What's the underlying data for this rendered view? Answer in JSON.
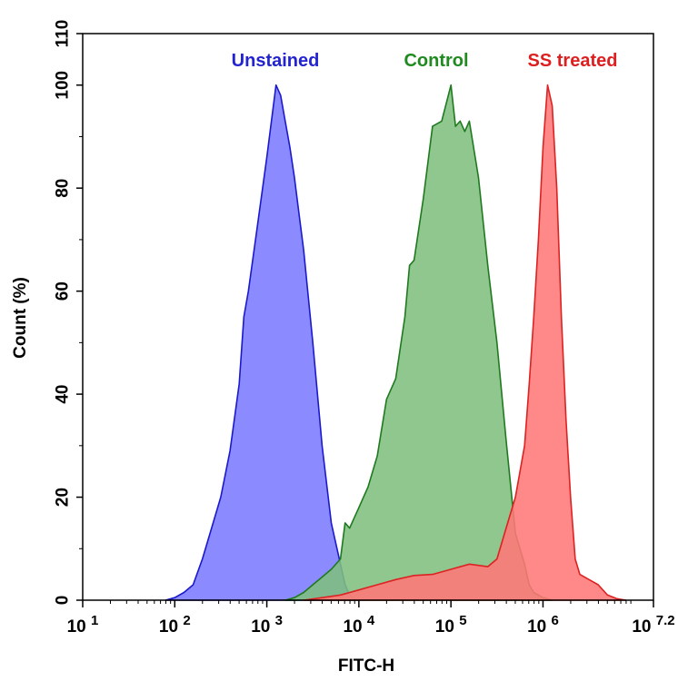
{
  "chart_data": {
    "type": "area",
    "title": "",
    "xlabel": "FITC-H",
    "ylabel": "Count  (%)",
    "x_scale": "log10",
    "xlim": [
      1,
      7.2
    ],
    "ylim": [
      0,
      110
    ],
    "x_ticks": [
      {
        "value": 1,
        "base": "10",
        "exp": "1"
      },
      {
        "value": 2,
        "base": "10",
        "exp": "2"
      },
      {
        "value": 3,
        "base": "10",
        "exp": "3"
      },
      {
        "value": 4,
        "base": "10",
        "exp": "4"
      },
      {
        "value": 5,
        "base": "10",
        "exp": "5"
      },
      {
        "value": 6,
        "base": "10",
        "exp": "6"
      },
      {
        "value": 7.2,
        "base": "10",
        "exp": "7.2"
      }
    ],
    "y_ticks": [
      {
        "value": 0,
        "label": "0"
      },
      {
        "value": 20,
        "label": "20"
      },
      {
        "value": 40,
        "label": "40"
      },
      {
        "value": 60,
        "label": "60"
      },
      {
        "value": 80,
        "label": "80"
      },
      {
        "value": 100,
        "label": "100"
      },
      {
        "value": 110,
        "label": "110"
      }
    ],
    "grid": false,
    "series": [
      {
        "name": "Unstained",
        "color": "#1a1acc",
        "fill": "#7b7bff",
        "points": [
          [
            1.9,
            0
          ],
          [
            2.0,
            0.5
          ],
          [
            2.1,
            1.5
          ],
          [
            2.2,
            3
          ],
          [
            2.3,
            8
          ],
          [
            2.4,
            14
          ],
          [
            2.5,
            20
          ],
          [
            2.6,
            29
          ],
          [
            2.7,
            42
          ],
          [
            2.75,
            55
          ],
          [
            2.8,
            60
          ],
          [
            2.9,
            73
          ],
          [
            3.0,
            86
          ],
          [
            3.1,
            100
          ],
          [
            3.15,
            98
          ],
          [
            3.2,
            93
          ],
          [
            3.25,
            88
          ],
          [
            3.3,
            82
          ],
          [
            3.35,
            75
          ],
          [
            3.4,
            68
          ],
          [
            3.5,
            50
          ],
          [
            3.6,
            30
          ],
          [
            3.7,
            15
          ],
          [
            3.8,
            7
          ],
          [
            3.85,
            3
          ],
          [
            3.9,
            1
          ],
          [
            3.95,
            0.2
          ],
          [
            4.0,
            0
          ]
        ]
      },
      {
        "name": "Control",
        "color": "#1f7a1f",
        "fill": "#7fbf7f",
        "points": [
          [
            3.2,
            0
          ],
          [
            3.3,
            0.5
          ],
          [
            3.4,
            1.5
          ],
          [
            3.5,
            3
          ],
          [
            3.6,
            4.5
          ],
          [
            3.7,
            6
          ],
          [
            3.8,
            8
          ],
          [
            3.85,
            15
          ],
          [
            3.9,
            14
          ],
          [
            4.0,
            18
          ],
          [
            4.1,
            22
          ],
          [
            4.2,
            28
          ],
          [
            4.3,
            39
          ],
          [
            4.4,
            43
          ],
          [
            4.5,
            55
          ],
          [
            4.55,
            65
          ],
          [
            4.6,
            66
          ],
          [
            4.65,
            72
          ],
          [
            4.7,
            78
          ],
          [
            4.8,
            92
          ],
          [
            4.9,
            93
          ],
          [
            5.0,
            100
          ],
          [
            5.05,
            92
          ],
          [
            5.1,
            93
          ],
          [
            5.15,
            91
          ],
          [
            5.2,
            93
          ],
          [
            5.3,
            82
          ],
          [
            5.4,
            65
          ],
          [
            5.5,
            50
          ],
          [
            5.6,
            31
          ],
          [
            5.7,
            13
          ],
          [
            5.8,
            7
          ],
          [
            5.85,
            3
          ],
          [
            5.9,
            1.5
          ],
          [
            6.0,
            0.5
          ],
          [
            6.1,
            0
          ]
        ]
      },
      {
        "name": "SS treated",
        "color": "#dd2222",
        "fill": "#ff7777",
        "points": [
          [
            3.4,
            0
          ],
          [
            3.6,
            0.5
          ],
          [
            3.8,
            1
          ],
          [
            4.0,
            2
          ],
          [
            4.2,
            3
          ],
          [
            4.4,
            4
          ],
          [
            4.6,
            4.8
          ],
          [
            4.8,
            5
          ],
          [
            5.0,
            6
          ],
          [
            5.2,
            7
          ],
          [
            5.4,
            6.5
          ],
          [
            5.5,
            8
          ],
          [
            5.6,
            14
          ],
          [
            5.7,
            20
          ],
          [
            5.8,
            30
          ],
          [
            5.85,
            42
          ],
          [
            5.9,
            55
          ],
          [
            5.95,
            70
          ],
          [
            6.0,
            88
          ],
          [
            6.05,
            100
          ],
          [
            6.1,
            96
          ],
          [
            6.15,
            80
          ],
          [
            6.2,
            55
          ],
          [
            6.25,
            35
          ],
          [
            6.3,
            20
          ],
          [
            6.35,
            8
          ],
          [
            6.4,
            5
          ],
          [
            6.5,
            4
          ],
          [
            6.6,
            3
          ],
          [
            6.7,
            1
          ],
          [
            6.8,
            0.3
          ],
          [
            6.9,
            0
          ]
        ]
      }
    ],
    "annotations": [
      {
        "text": "Unstained",
        "series": "Unstained",
        "color": "#2323d0"
      },
      {
        "text": "Control",
        "series": "Control",
        "color": "#1f8a1f"
      },
      {
        "text": "SS treated",
        "series": "SS treated",
        "color": "#dd1f1f"
      }
    ]
  }
}
